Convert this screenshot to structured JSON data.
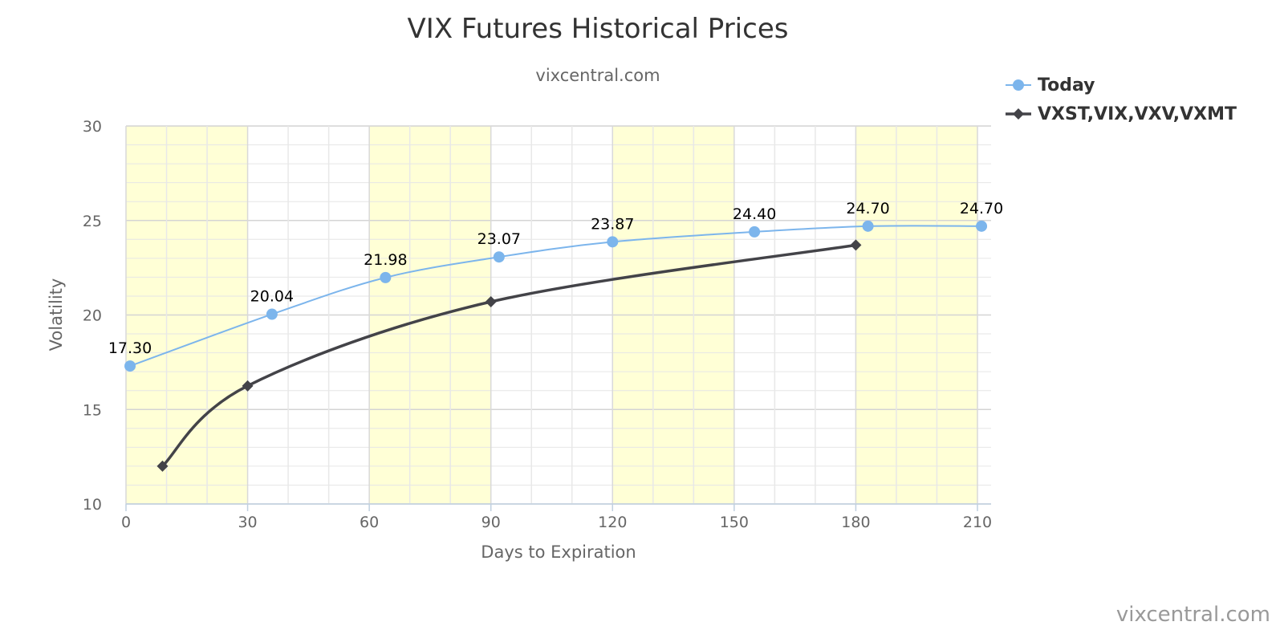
{
  "chart_data": {
    "type": "line",
    "title": "VIX Futures Historical Prices",
    "subtitle": "vixcentral.com",
    "xlabel": "Days to Expiration",
    "ylabel": "Volatility",
    "xlim": [
      0,
      210
    ],
    "ylim": [
      10,
      30
    ],
    "x_ticks": [
      "0",
      "30",
      "60",
      "90",
      "120",
      "150",
      "180",
      "210"
    ],
    "y_ticks": [
      "10",
      "15",
      "20",
      "25",
      "30"
    ],
    "grid": true,
    "shaded_bands": [
      [
        0,
        30
      ],
      [
        60,
        90
      ],
      [
        120,
        150
      ],
      [
        180,
        210
      ]
    ],
    "legend_position": "top-right",
    "credit": "vixcentral.com",
    "series": [
      {
        "name": "Today",
        "color": "#7cb5ec",
        "marker": "circle",
        "points": [
          {
            "x": 1,
            "y": 17.3,
            "label": "17.30"
          },
          {
            "x": 36,
            "y": 20.04,
            "label": "20.04"
          },
          {
            "x": 64,
            "y": 21.98,
            "label": "21.98"
          },
          {
            "x": 92,
            "y": 23.07,
            "label": "23.07"
          },
          {
            "x": 120,
            "y": 23.87,
            "label": "23.87"
          },
          {
            "x": 155,
            "y": 24.4,
            "label": "24.40"
          },
          {
            "x": 183,
            "y": 24.7,
            "label": "24.70"
          },
          {
            "x": 211,
            "y": 24.7,
            "label": "24.70"
          }
        ]
      },
      {
        "name": "VXST,VIX,VXV,VXMT",
        "color": "#434348",
        "marker": "diamond",
        "points": [
          {
            "x": 9,
            "y": 12.0
          },
          {
            "x": 30,
            "y": 16.25
          },
          {
            "x": 90,
            "y": 20.7
          },
          {
            "x": 180,
            "y": 23.7
          }
        ]
      }
    ]
  }
}
